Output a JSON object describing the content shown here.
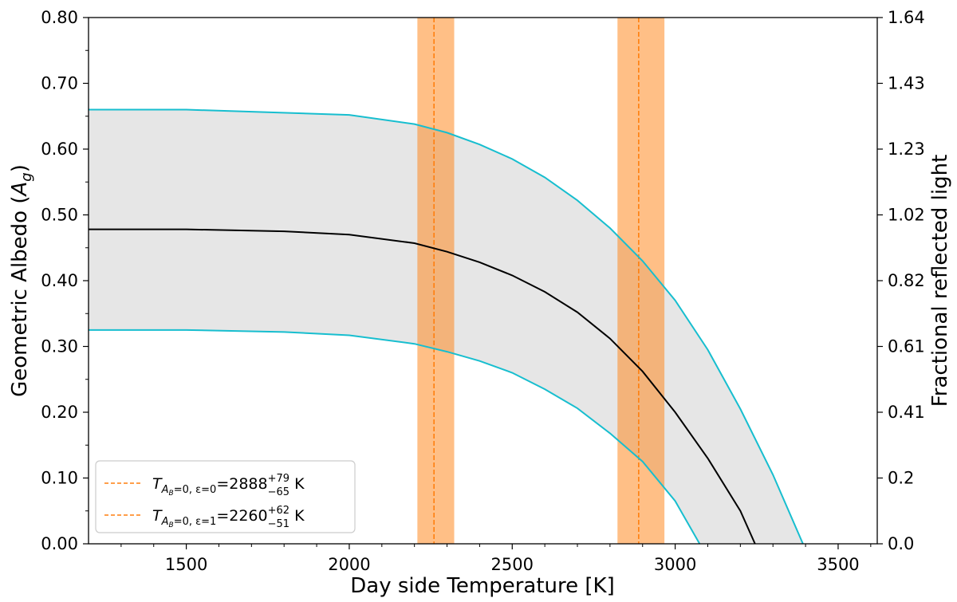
{
  "chart_data": {
    "type": "line",
    "xlabel": "Day side Temperature [K]",
    "ylabel_left": "Geometric Albedo (A_g)",
    "ylabel_left_prefix": "Geometric Albedo (",
    "ylabel_left_symbol": "A",
    "ylabel_left_sub": "g",
    "ylabel_left_suffix": ")",
    "ylabel_right": "Fractional reflected light",
    "xlim": [
      1200,
      3620
    ],
    "ylim": [
      0.0,
      0.8
    ],
    "x_ticks": [
      1500,
      2000,
      2500,
      3000,
      3500
    ],
    "x_tick_labels": [
      "1500",
      "2000",
      "2500",
      "3000",
      "3500"
    ],
    "y_ticks": [
      0.0,
      0.1,
      0.2,
      0.3,
      0.4,
      0.5,
      0.6,
      0.7,
      0.8
    ],
    "y_tick_labels": [
      "0.00",
      "0.10",
      "0.20",
      "0.30",
      "0.40",
      "0.50",
      "0.60",
      "0.70",
      "0.80"
    ],
    "y2_tick_labels": [
      "0.0",
      "0.2",
      "0.41",
      "0.61",
      "0.82",
      "1.02",
      "1.23",
      "1.43",
      "1.64"
    ],
    "grid": false,
    "legend_position": "lower-left",
    "colors": {
      "median": "#000000",
      "bounds": "#17becf",
      "fill": "#e6e6e6",
      "band": "#ff7f0e",
      "band_fill": "#ffbb78"
    },
    "series": [
      {
        "role": "upper",
        "x": [
          1200,
          1500,
          2000,
          2200,
          2300,
          2400,
          2500,
          2600,
          2700,
          2800,
          2900,
          3000,
          3100,
          3200,
          3300,
          3392
        ],
        "y": [
          0.66,
          0.66,
          0.652,
          0.638,
          0.625,
          0.607,
          0.585,
          0.557,
          0.522,
          0.48,
          0.43,
          0.37,
          0.295,
          0.205,
          0.105,
          0.0
        ]
      },
      {
        "role": "median",
        "x": [
          1200,
          1500,
          1800,
          2000,
          2200,
          2300,
          2400,
          2500,
          2600,
          2700,
          2800,
          2900,
          3000,
          3100,
          3200,
          3245
        ],
        "y": [
          0.478,
          0.478,
          0.475,
          0.47,
          0.457,
          0.444,
          0.428,
          0.408,
          0.383,
          0.352,
          0.312,
          0.262,
          0.2,
          0.13,
          0.05,
          0.0
        ]
      },
      {
        "role": "lower",
        "x": [
          1200,
          1500,
          1800,
          2000,
          2200,
          2300,
          2400,
          2500,
          2600,
          2700,
          2800,
          2900,
          3000,
          3075
        ],
        "y": [
          0.325,
          0.325,
          0.322,
          0.317,
          0.304,
          0.292,
          0.278,
          0.26,
          0.235,
          0.206,
          0.168,
          0.125,
          0.065,
          0.0
        ]
      }
    ],
    "bands": [
      {
        "id": "eps0",
        "center": 2888,
        "low": 2823,
        "high": 2967,
        "legend": {
          "sym": "T",
          "sub_pre": "A",
          "sub_sub": "B",
          "sub_post": "=0, ε=0",
          "eq": "=",
          "value": "2888",
          "sup": "+79",
          "sub": "−65",
          "unit": "K"
        }
      },
      {
        "id": "eps1",
        "center": 2260,
        "low": 2209,
        "high": 2322,
        "legend": {
          "sym": "T",
          "sub_pre": "A",
          "sub_sub": "B",
          "sub_post": "=0, ε=1",
          "eq": "=",
          "value": "2260",
          "sup": "+62",
          "sub": "−51",
          "unit": "K"
        }
      }
    ]
  }
}
